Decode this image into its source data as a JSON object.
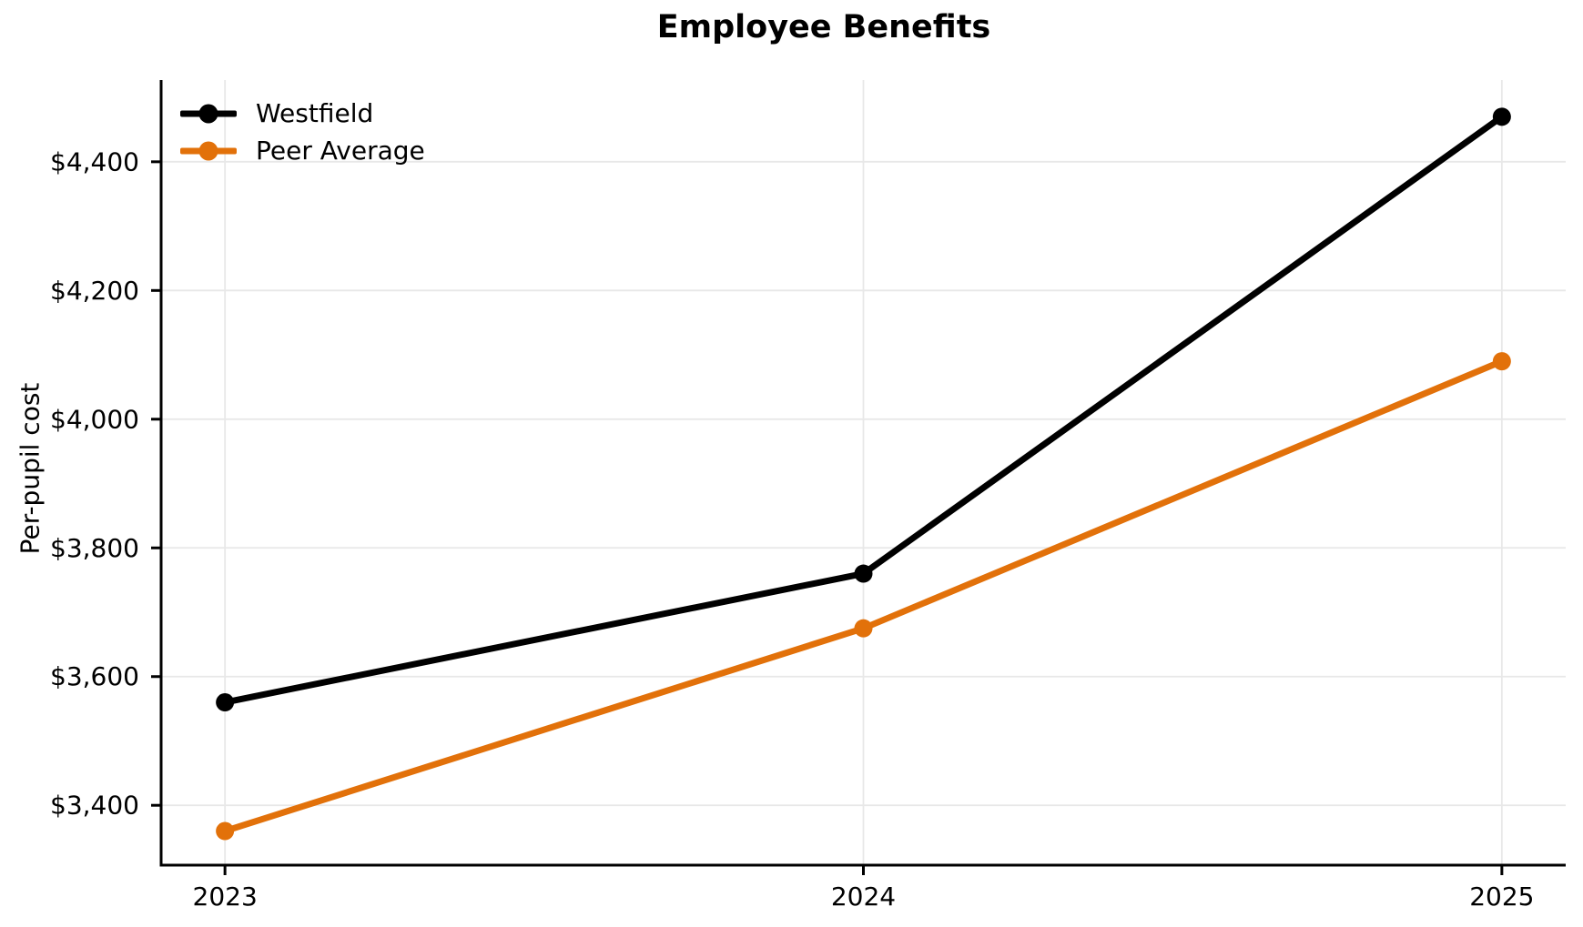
{
  "chart_data": {
    "type": "line",
    "title": "Employee Benefits",
    "xlabel": "",
    "ylabel": "Per-pupil cost",
    "categories": [
      2023,
      2024,
      2025
    ],
    "x_tick_labels": [
      "2023",
      "2024",
      "2025"
    ],
    "series": [
      {
        "name": "Westfield",
        "color": "#000000",
        "values": [
          3560,
          3760,
          4470
        ]
      },
      {
        "name": "Peer Average",
        "color": "#e2710a",
        "values": [
          3360,
          3675,
          4090
        ]
      }
    ],
    "y_ticks": [
      3400,
      3600,
      3800,
      4000,
      4200,
      4400
    ],
    "y_tick_labels": [
      "$3,400",
      "$3,600",
      "$3,800",
      "$4,000",
      "$4,200",
      "$4,400"
    ],
    "ylim": [
      3307,
      4527
    ],
    "xlim": [
      2022.9,
      2025.1
    ],
    "grid": true,
    "legend_position": "upper left",
    "colors": {
      "grid": "#e8e8e8",
      "axis": "#000000",
      "background": "#ffffff"
    }
  }
}
